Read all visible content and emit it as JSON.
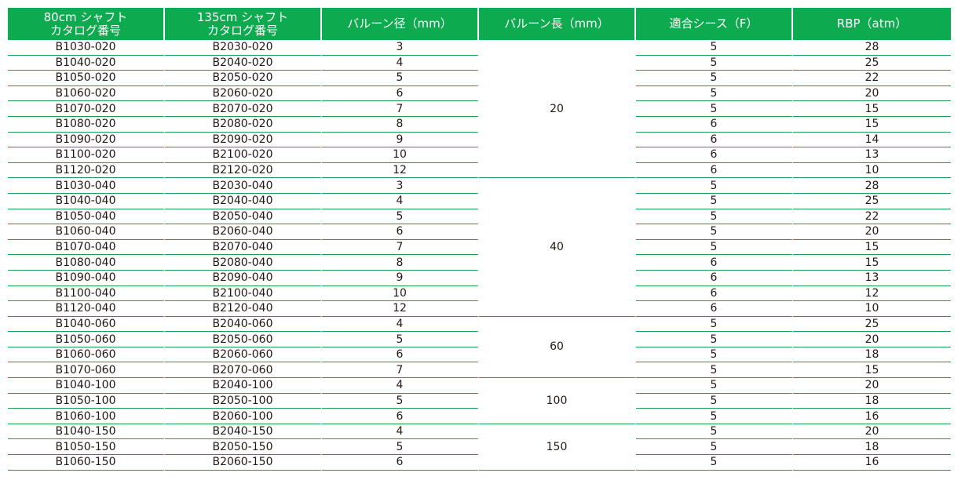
{
  "headers": {
    "col1_line1": "80cm シャフト",
    "col1_line2": "カタログ番号",
    "col2_line1": "135cm シャフト",
    "col2_line2": "カタログ番号",
    "col3": "バルーン径（mm）",
    "col4": "バルーン長（mm）",
    "col5": "適合シース（F）",
    "col6": "RBP（atm）"
  },
  "groups": [
    {
      "length": "20",
      "rows": [
        {
          "cat80": "B1030-020",
          "cat135": "B2030-020",
          "diameter": "3",
          "sheath": "5",
          "rbp": "28"
        },
        {
          "cat80": "B1040-020",
          "cat135": "B2040-020",
          "diameter": "4",
          "sheath": "5",
          "rbp": "25"
        },
        {
          "cat80": "B1050-020",
          "cat135": "B2050-020",
          "diameter": "5",
          "sheath": "5",
          "rbp": "22"
        },
        {
          "cat80": "B1060-020",
          "cat135": "B2060-020",
          "diameter": "6",
          "sheath": "5",
          "rbp": "20"
        },
        {
          "cat80": "B1070-020",
          "cat135": "B2070-020",
          "diameter": "7",
          "sheath": "5",
          "rbp": "15"
        },
        {
          "cat80": "B1080-020",
          "cat135": "B2080-020",
          "diameter": "8",
          "sheath": "6",
          "rbp": "15"
        },
        {
          "cat80": "B1090-020",
          "cat135": "B2090-020",
          "diameter": "9",
          "sheath": "6",
          "rbp": "14"
        },
        {
          "cat80": "B1100-020",
          "cat135": "B2100-020",
          "diameter": "10",
          "sheath": "6",
          "rbp": "13"
        },
        {
          "cat80": "B1120-020",
          "cat135": "B2120-020",
          "diameter": "12",
          "sheath": "6",
          "rbp": "10"
        }
      ]
    },
    {
      "length": "40",
      "rows": [
        {
          "cat80": "B1030-040",
          "cat135": "B2030-040",
          "diameter": "3",
          "sheath": "5",
          "rbp": "28"
        },
        {
          "cat80": "B1040-040",
          "cat135": "B2040-040",
          "diameter": "4",
          "sheath": "5",
          "rbp": "25"
        },
        {
          "cat80": "B1050-040",
          "cat135": "B2050-040",
          "diameter": "5",
          "sheath": "5",
          "rbp": "22"
        },
        {
          "cat80": "B1060-040",
          "cat135": "B2060-040",
          "diameter": "6",
          "sheath": "5",
          "rbp": "20"
        },
        {
          "cat80": "B1070-040",
          "cat135": "B2070-040",
          "diameter": "7",
          "sheath": "5",
          "rbp": "15"
        },
        {
          "cat80": "B1080-040",
          "cat135": "B2080-040",
          "diameter": "8",
          "sheath": "6",
          "rbp": "15"
        },
        {
          "cat80": "B1090-040",
          "cat135": "B2090-040",
          "diameter": "9",
          "sheath": "6",
          "rbp": "13"
        },
        {
          "cat80": "B1100-040",
          "cat135": "B2100-040",
          "diameter": "10",
          "sheath": "6",
          "rbp": "12"
        },
        {
          "cat80": "B1120-040",
          "cat135": "B2120-040",
          "diameter": "12",
          "sheath": "6",
          "rbp": "10"
        }
      ]
    },
    {
      "length": "60",
      "rows": [
        {
          "cat80": "B1040-060",
          "cat135": "B2040-060",
          "diameter": "4",
          "sheath": "5",
          "rbp": "25"
        },
        {
          "cat80": "B1050-060",
          "cat135": "B2050-060",
          "diameter": "5",
          "sheath": "5",
          "rbp": "20"
        },
        {
          "cat80": "B1060-060",
          "cat135": "B2060-060",
          "diameter": "6",
          "sheath": "5",
          "rbp": "18"
        },
        {
          "cat80": "B1070-060",
          "cat135": "B2070-060",
          "diameter": "7",
          "sheath": "5",
          "rbp": "15"
        }
      ]
    },
    {
      "length": "100",
      "rows": [
        {
          "cat80": "B1040-100",
          "cat135": "B2040-100",
          "diameter": "4",
          "sheath": "5",
          "rbp": "20"
        },
        {
          "cat80": "B1050-100",
          "cat135": "B2050-100",
          "diameter": "5",
          "sheath": "5",
          "rbp": "18"
        },
        {
          "cat80": "B1060-100",
          "cat135": "B2060-100",
          "diameter": "6",
          "sheath": "5",
          "rbp": "16"
        }
      ]
    },
    {
      "length": "150",
      "rows": [
        {
          "cat80": "B1040-150",
          "cat135": "B2040-150",
          "diameter": "4",
          "sheath": "5",
          "rbp": "20"
        },
        {
          "cat80": "B1050-150",
          "cat135": "B2050-150",
          "diameter": "5",
          "sheath": "5",
          "rbp": "18"
        },
        {
          "cat80": "B1060-150",
          "cat135": "B2060-150",
          "diameter": "6",
          "sheath": "5",
          "rbp": "16"
        }
      ]
    }
  ],
  "colors": {
    "header_bg": "#0daa4f",
    "header_text": "#ffffff",
    "rule": "#1a9e4e"
  }
}
